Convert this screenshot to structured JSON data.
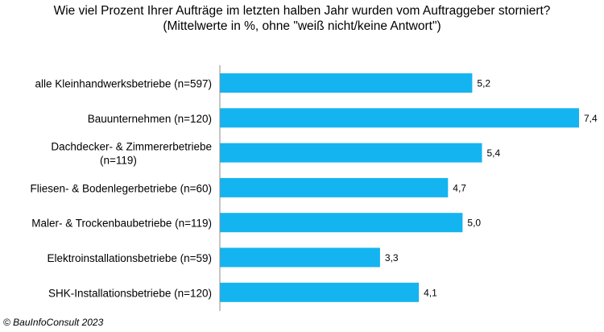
{
  "chart_data": {
    "type": "bar",
    "orientation": "horizontal",
    "title": "Wie viel Prozent Ihrer Aufträge im letzten halben Jahr wurden vom Auftraggeber  storniert?",
    "subtitle": "(Mittelwerte in %, ohne \"weiß nicht/keine Antwort\")",
    "categories": [
      [
        "alle Kleinhandwerksbetriebe (n=597)"
      ],
      [
        "Bauunternehmen (n=120)"
      ],
      [
        "Dachdecker- & Zimmererbetriebe",
        "(n=119)"
      ],
      [
        "Fliesen- & Bodenlegerbetriebe (n=60)"
      ],
      [
        "Maler- & Trockenbaubetriebe (n=119)"
      ],
      [
        "Elektroinstallationsbetriebe (n=59)"
      ],
      [
        "SHK-Installationsbetriebe (n=120)"
      ]
    ],
    "values": [
      5.2,
      7.4,
      5.4,
      4.7,
      5.0,
      3.3,
      4.1
    ],
    "data_labels": [
      "5,2",
      "7,4",
      "5,4",
      "4,7",
      "5,0",
      "3,3",
      "4,1"
    ],
    "xlim": [
      0,
      7.4
    ],
    "bar_color": "#14b4f0",
    "axis_color": "#8c8c8c",
    "grid": false
  },
  "footer": {
    "copyright": "© BauInfoConsult 2023"
  }
}
